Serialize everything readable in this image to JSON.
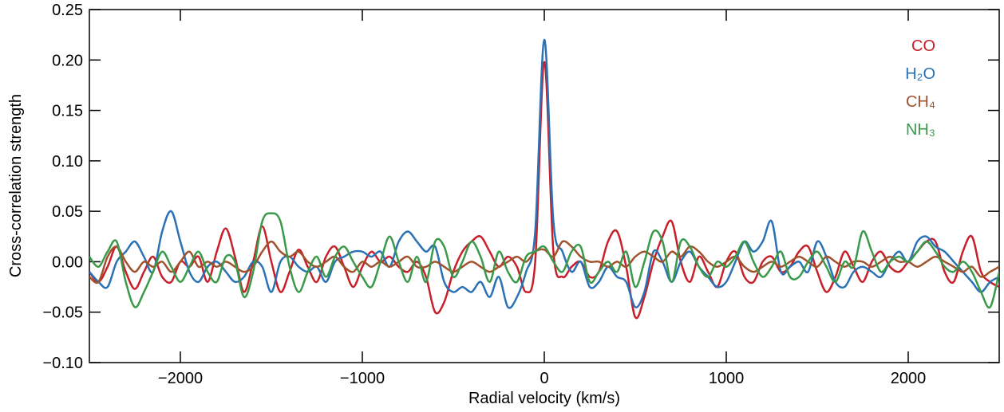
{
  "chart_data": {
    "type": "line",
    "xlabel": "Radial velocity (km/s)",
    "ylabel": "Cross-correlation strength",
    "xlim": [
      -2500,
      2500
    ],
    "ylim": [
      -0.1,
      0.25
    ],
    "xticks": [
      {
        "value": -2000,
        "label": "−2000"
      },
      {
        "value": -1000,
        "label": "−1000"
      },
      0,
      1000,
      2000
    ],
    "yticks": [
      {
        "value": -0.1,
        "label": "−0.10"
      },
      {
        "value": -0.05,
        "label": "−0.05"
      },
      {
        "value": 0,
        "label": "0.00"
      },
      0.05,
      {
        "value": 0.1,
        "label": "0.10"
      },
      0.15,
      {
        "value": 0.2,
        "label": "0.20"
      },
      0.25
    ],
    "legend": "upper right",
    "x": [
      -2500,
      -2450,
      -2400,
      -2350,
      -2300,
      -2250,
      -2200,
      -2150,
      -2100,
      -2050,
      -2000,
      -1950,
      -1900,
      -1850,
      -1800,
      -1750,
      -1700,
      -1650,
      -1600,
      -1550,
      -1500,
      -1450,
      -1400,
      -1350,
      -1300,
      -1250,
      -1200,
      -1150,
      -1100,
      -1050,
      -1000,
      -950,
      -900,
      -850,
      -800,
      -750,
      -700,
      -650,
      -600,
      -550,
      -500,
      -450,
      -400,
      -350,
      -300,
      -250,
      -200,
      -150,
      -100,
      -50,
      0,
      50,
      100,
      150,
      200,
      250,
      300,
      350,
      400,
      450,
      500,
      550,
      600,
      650,
      700,
      750,
      800,
      850,
      900,
      950,
      1000,
      1050,
      1100,
      1150,
      1200,
      1250,
      1300,
      1350,
      1400,
      1450,
      1500,
      1550,
      1600,
      1650,
      1700,
      1750,
      1800,
      1850,
      1900,
      1950,
      2000,
      2050,
      2100,
      2150,
      2200,
      2250,
      2300,
      2350,
      2400,
      2450,
      2500
    ],
    "series": [
      {
        "name": "CO",
        "color": "#c8202a",
        "values": [
          -0.01,
          -0.02,
          -0.005,
          0.015,
          -0.01,
          -0.027,
          -0.01,
          0.005,
          -0.015,
          -0.02,
          0.0,
          -0.005,
          0.005,
          -0.02,
          0.01,
          0.033,
          0.005,
          -0.03,
          0.0,
          0.035,
          0.0,
          -0.03,
          -0.01,
          0.012,
          -0.005,
          -0.02,
          0.005,
          0.015,
          -0.005,
          -0.025,
          -0.005,
          0.01,
          0.0,
          0.005,
          -0.005,
          -0.01,
          0.0,
          -0.015,
          -0.05,
          -0.04,
          -0.01,
          0.01,
          0.02,
          0.025,
          0.01,
          -0.005,
          0.005,
          -0.005,
          -0.03,
          0.0,
          0.198,
          0.01,
          -0.015,
          -0.005,
          0.0,
          -0.015,
          -0.01,
          0.02,
          0.03,
          -0.005,
          -0.055,
          -0.035,
          0.0,
          0.025,
          0.04,
          0.0,
          -0.02,
          0.005,
          -0.01,
          -0.025,
          0.0,
          0.01,
          -0.015,
          -0.02,
          0.0,
          0.005,
          -0.01,
          -0.005,
          0.01,
          0.015,
          -0.01,
          -0.03,
          -0.015,
          0.01,
          -0.005,
          -0.02,
          0.0,
          0.01,
          -0.005,
          -0.01,
          0.0,
          0.01,
          0.02,
          0.02,
          -0.01,
          -0.02,
          0.01,
          0.025,
          -0.01,
          -0.02,
          -0.025
        ]
      },
      {
        "name": "H₂O",
        "color": "#2a72b5",
        "values": [
          -0.01,
          -0.02,
          -0.025,
          0.0,
          0.01,
          0.02,
          0.005,
          -0.01,
          0.03,
          0.05,
          0.02,
          -0.01,
          -0.02,
          -0.005,
          0.0,
          -0.01,
          -0.02,
          -0.015,
          0.0,
          -0.005,
          -0.03,
          0.0,
          0.005,
          -0.005,
          -0.01,
          -0.005,
          -0.02,
          0.0,
          0.005,
          0.01,
          0.01,
          0.005,
          0.01,
          -0.005,
          0.02,
          0.03,
          0.02,
          0.01,
          0.015,
          -0.02,
          -0.03,
          -0.025,
          -0.03,
          -0.02,
          -0.035,
          -0.015,
          -0.045,
          -0.035,
          -0.01,
          0.03,
          0.22,
          0.04,
          0.01,
          -0.01,
          0.0,
          -0.025,
          -0.02,
          -0.005,
          -0.015,
          -0.02,
          -0.045,
          -0.03,
          0.01,
          0.0,
          -0.02,
          0.0,
          0.01,
          -0.005,
          -0.015,
          -0.025,
          -0.02,
          0.0,
          0.02,
          0.01,
          0.02,
          0.04,
          -0.01,
          -0.005,
          0.0,
          -0.01,
          0.02,
          0.005,
          -0.02,
          -0.025,
          -0.01,
          -0.005,
          -0.01,
          -0.015,
          0.0,
          0.01,
          0.0,
          0.02,
          0.025,
          0.015,
          0.01,
          0.0,
          -0.01,
          -0.02,
          -0.03,
          -0.02,
          -0.015
        ]
      },
      {
        "name": "CH₄",
        "color": "#a0522d",
        "values": [
          -0.015,
          -0.02,
          0.005,
          0.015,
          0.0,
          -0.01,
          0.0,
          -0.005,
          0.0,
          -0.01,
          0.0,
          0.01,
          -0.005,
          0.0,
          -0.005,
          0.0,
          -0.005,
          -0.01,
          -0.005,
          0.01,
          0.02,
          0.01,
          0.005,
          0.01,
          0.0,
          -0.005,
          0.0,
          0.005,
          -0.005,
          -0.01,
          0.0,
          -0.005,
          0.0,
          -0.005,
          0.0,
          0.005,
          -0.005,
          -0.005,
          0.0,
          -0.005,
          -0.01,
          -0.005,
          0.0,
          -0.005,
          -0.01,
          -0.005,
          0.0,
          0.005,
          0.0,
          0.01,
          0.012,
          0.005,
          0.02,
          0.015,
          0.005,
          0.0,
          0.0,
          -0.005,
          0.0,
          -0.005,
          0.005,
          0.01,
          0.005,
          0.0,
          0.01,
          0.005,
          0.015,
          0.01,
          0.0,
          -0.005,
          0.0,
          0.005,
          -0.005,
          -0.01,
          -0.005,
          0.0,
          -0.005,
          0.0,
          0.005,
          0.0,
          -0.005,
          0.005,
          0.0,
          -0.005,
          0.0,
          0.0,
          -0.005,
          0.0,
          0.005,
          0.0,
          0.0,
          -0.005,
          0.0,
          0.005,
          0.0,
          -0.005,
          -0.01,
          -0.005,
          -0.015,
          -0.01,
          -0.005
        ]
      },
      {
        "name": "NH₃",
        "color": "#3a9a4a",
        "values": [
          0.005,
          -0.005,
          0.01,
          0.02,
          -0.02,
          -0.045,
          -0.03,
          -0.01,
          0.01,
          -0.005,
          -0.02,
          -0.005,
          0.01,
          -0.01,
          -0.02,
          0.005,
          0.0,
          -0.035,
          -0.01,
          0.04,
          0.048,
          0.04,
          -0.005,
          -0.03,
          -0.01,
          0.005,
          -0.015,
          0.005,
          0.015,
          0.0,
          -0.015,
          -0.025,
          0.0,
          0.025,
          0.0,
          -0.02,
          0.005,
          -0.02,
          0.02,
          0.015,
          -0.015,
          0.0,
          0.02,
          0.005,
          -0.02,
          0.01,
          -0.01,
          -0.02,
          0.005,
          0.01,
          0.015,
          0.0,
          -0.01,
          0.01,
          0.015,
          -0.02,
          -0.01,
          0.0,
          -0.01,
          0.01,
          -0.025,
          0.0,
          0.03,
          0.02,
          -0.02,
          0.02,
          0.015,
          -0.005,
          -0.015,
          0.0,
          -0.005,
          0.005,
          0.02,
          0.0,
          -0.015,
          -0.005,
          0.01,
          -0.015,
          -0.015,
          0.0,
          0.01,
          -0.005,
          -0.02,
          0.0,
          -0.005,
          0.03,
          0.01,
          -0.01,
          0.0,
          0.005,
          0.0,
          0.01,
          0.02,
          0.01,
          -0.005,
          -0.01,
          0.0,
          -0.01,
          -0.03,
          -0.045,
          -0.01
        ]
      }
    ]
  }
}
